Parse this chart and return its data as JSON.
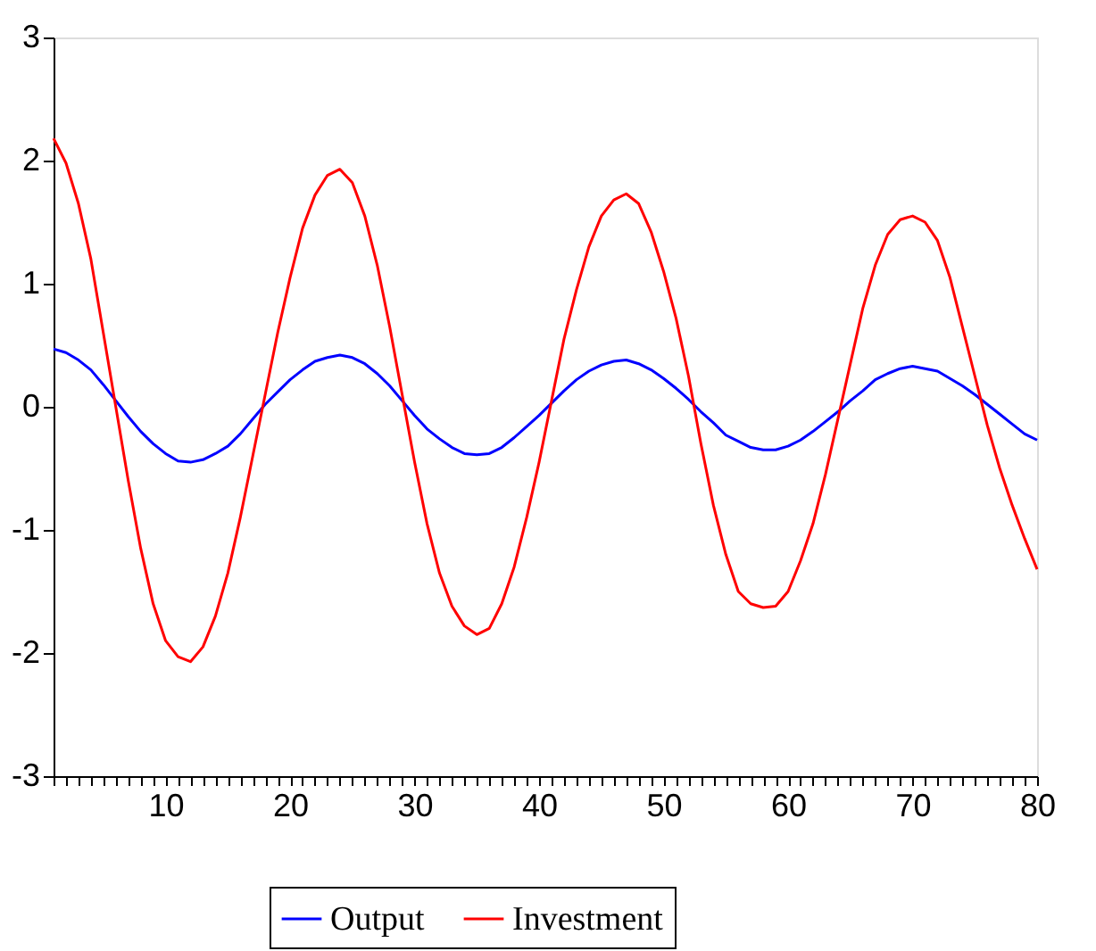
{
  "chart_data": {
    "type": "line",
    "x": [
      1,
      2,
      3,
      4,
      5,
      6,
      7,
      8,
      9,
      10,
      11,
      12,
      13,
      14,
      15,
      16,
      17,
      18,
      19,
      20,
      21,
      22,
      23,
      24,
      25,
      26,
      27,
      28,
      29,
      30,
      31,
      32,
      33,
      34,
      35,
      36,
      37,
      38,
      39,
      40,
      41,
      42,
      43,
      44,
      45,
      46,
      47,
      48,
      49,
      50,
      51,
      52,
      53,
      54,
      55,
      56,
      57,
      58,
      59,
      60,
      61,
      62,
      63,
      64,
      65,
      66,
      67,
      68,
      69,
      70,
      71,
      72,
      73,
      74,
      75,
      76,
      77,
      78,
      79,
      80
    ],
    "series": [
      {
        "name": "Output",
        "color": "#0000ff",
        "values": [
          0.47,
          0.44,
          0.38,
          0.3,
          0.18,
          0.05,
          -0.08,
          -0.2,
          -0.3,
          -0.38,
          -0.44,
          -0.45,
          -0.43,
          -0.38,
          -0.32,
          -0.22,
          -0.1,
          0.02,
          0.12,
          0.22,
          0.3,
          0.37,
          0.4,
          0.42,
          0.4,
          0.35,
          0.27,
          0.17,
          0.05,
          -0.07,
          -0.18,
          -0.26,
          -0.33,
          -0.38,
          -0.39,
          -0.38,
          -0.33,
          -0.25,
          -0.16,
          -0.07,
          0.03,
          0.13,
          0.22,
          0.29,
          0.34,
          0.37,
          0.38,
          0.35,
          0.3,
          0.23,
          0.15,
          0.06,
          -0.04,
          -0.13,
          -0.23,
          -0.28,
          -0.33,
          -0.35,
          -0.35,
          -0.32,
          -0.27,
          -0.2,
          -0.12,
          -0.04,
          0.05,
          0.13,
          0.22,
          0.27,
          0.31,
          0.33,
          0.31,
          0.29,
          0.23,
          0.17,
          0.1,
          0.02,
          -0.06,
          -0.14,
          -0.22,
          -0.27
        ]
      },
      {
        "name": "Investment",
        "color": "#ff0000",
        "values": [
          2.18,
          1.98,
          1.65,
          1.2,
          0.6,
          0.0,
          -0.6,
          -1.15,
          -1.6,
          -1.9,
          -2.03,
          -2.07,
          -1.95,
          -1.7,
          -1.35,
          -0.9,
          -0.4,
          0.1,
          0.6,
          1.05,
          1.45,
          1.72,
          1.88,
          1.93,
          1.82,
          1.55,
          1.15,
          0.65,
          0.1,
          -0.45,
          -0.95,
          -1.35,
          -1.62,
          -1.78,
          -1.85,
          -1.8,
          -1.6,
          -1.3,
          -0.9,
          -0.45,
          0.05,
          0.55,
          0.95,
          1.3,
          1.55,
          1.68,
          1.73,
          1.65,
          1.42,
          1.1,
          0.72,
          0.25,
          -0.3,
          -0.8,
          -1.2,
          -1.5,
          -1.6,
          -1.63,
          -1.62,
          -1.5,
          -1.25,
          -0.95,
          -0.55,
          -0.1,
          0.35,
          0.8,
          1.15,
          1.4,
          1.52,
          1.55,
          1.5,
          1.35,
          1.05,
          0.65,
          0.25,
          -0.15,
          -0.5,
          -0.8,
          -1.07,
          -1.32
        ]
      }
    ],
    "xlim": [
      1,
      80
    ],
    "xticks": [
      {
        "value": 1,
        "label": null
      },
      {
        "value": 2,
        "label": null
      },
      {
        "value": 3,
        "label": null
      },
      {
        "value": 4,
        "label": null
      },
      {
        "value": 5,
        "label": null
      },
      {
        "value": 6,
        "label": null
      },
      {
        "value": 7,
        "label": null
      },
      {
        "value": 8,
        "label": null
      },
      {
        "value": 9,
        "label": null
      },
      10,
      {
        "value": 11,
        "label": null
      },
      {
        "value": 12,
        "label": null
      },
      {
        "value": 13,
        "label": null
      },
      {
        "value": 14,
        "label": null
      },
      {
        "value": 15,
        "label": null
      },
      {
        "value": 16,
        "label": null
      },
      {
        "value": 17,
        "label": null
      },
      {
        "value": 18,
        "label": null
      },
      {
        "value": 19,
        "label": null
      },
      20,
      {
        "value": 21,
        "label": null
      },
      {
        "value": 22,
        "label": null
      },
      {
        "value": 23,
        "label": null
      },
      {
        "value": 24,
        "label": null
      },
      {
        "value": 25,
        "label": null
      },
      {
        "value": 26,
        "label": null
      },
      {
        "value": 27,
        "label": null
      },
      {
        "value": 28,
        "label": null
      },
      {
        "value": 29,
        "label": null
      },
      30,
      {
        "value": 31,
        "label": null
      },
      {
        "value": 32,
        "label": null
      },
      {
        "value": 33,
        "label": null
      },
      {
        "value": 34,
        "label": null
      },
      {
        "value": 35,
        "label": null
      },
      {
        "value": 36,
        "label": null
      },
      {
        "value": 37,
        "label": null
      },
      {
        "value": 38,
        "label": null
      },
      {
        "value": 39,
        "label": null
      },
      40,
      {
        "value": 41,
        "label": null
      },
      {
        "value": 42,
        "label": null
      },
      {
        "value": 43,
        "label": null
      },
      {
        "value": 44,
        "label": null
      },
      {
        "value": 45,
        "label": null
      },
      {
        "value": 46,
        "label": null
      },
      {
        "value": 47,
        "label": null
      },
      {
        "value": 48,
        "label": null
      },
      {
        "value": 49,
        "label": null
      },
      50,
      {
        "value": 51,
        "label": null
      },
      {
        "value": 52,
        "label": null
      },
      {
        "value": 53,
        "label": null
      },
      {
        "value": 54,
        "label": null
      },
      {
        "value": 55,
        "label": null
      },
      {
        "value": 56,
        "label": null
      },
      {
        "value": 57,
        "label": null
      },
      {
        "value": 58,
        "label": null
      },
      {
        "value": 59,
        "label": null
      },
      60,
      {
        "value": 61,
        "label": null
      },
      {
        "value": 62,
        "label": null
      },
      {
        "value": 63,
        "label": null
      },
      {
        "value": 64,
        "label": null
      },
      {
        "value": 65,
        "label": null
      },
      {
        "value": 66,
        "label": null
      },
      {
        "value": 67,
        "label": null
      },
      {
        "value": 68,
        "label": null
      },
      {
        "value": 69,
        "label": null
      },
      70,
      {
        "value": 71,
        "label": null
      },
      {
        "value": 72,
        "label": null
      },
      {
        "value": 73,
        "label": null
      },
      {
        "value": 74,
        "label": null
      },
      {
        "value": 75,
        "label": null
      },
      {
        "value": 76,
        "label": null
      },
      {
        "value": 77,
        "label": null
      },
      {
        "value": 78,
        "label": null
      },
      {
        "value": 79,
        "label": null
      },
      80
    ],
    "ylim": [
      -3,
      3
    ],
    "yticks": [
      -3,
      -2,
      -1,
      0,
      1,
      2,
      3
    ],
    "grid": false,
    "legend": "bottom",
    "marker": "none",
    "line_style": "solid"
  }
}
